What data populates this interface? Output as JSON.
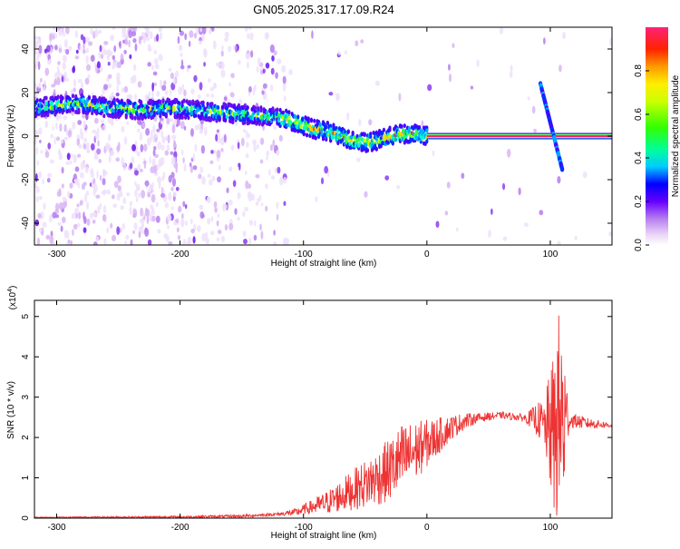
{
  "title": "GN05.2025.317.17.09.R24",
  "chart_data": [
    {
      "type": "heatmap",
      "xlabel": "Height of straight line (km)",
      "ylabel": "Frequency (Hz)",
      "xlim": [
        -318,
        150
      ],
      "ylim": [
        -50,
        50
      ],
      "xticks": [
        -300,
        -200,
        -100,
        0,
        100
      ],
      "yticks": [
        -40,
        -20,
        0,
        20,
        40
      ],
      "colorbar": {
        "label": "Normalized spectral amplitude",
        "range": [
          0,
          1
        ],
        "ticks": [
          0.0,
          0.2,
          0.4,
          0.6,
          0.8
        ]
      },
      "ridge": {
        "description_points_height_km": [
          -318,
          -300,
          -280,
          -260,
          -230,
          -210,
          -190,
          -170,
          -150,
          -130,
          -115,
          -100,
          -90,
          -80,
          -70,
          -60,
          -50,
          -40,
          -30,
          -20,
          -10,
          0,
          150
        ],
        "description_points_frequency_hz": [
          13,
          14,
          15,
          13,
          12,
          13,
          12,
          11,
          10,
          9,
          8,
          5,
          3,
          2,
          0,
          -2,
          -3,
          -2,
          0,
          1,
          1,
          0,
          0
        ]
      },
      "spike": {
        "height_km": [
          92,
          110
        ],
        "frequency_hz": [
          24,
          -16
        ]
      }
    },
    {
      "type": "line",
      "xlabel": "Height of straight line (km)",
      "ylabel": "SNR (10 * v/v)",
      "scale_label_base": "(x10",
      "scale_label_exp": "4",
      "scale_label_close": ")",
      "xlim": [
        -318,
        150
      ],
      "ylim": [
        0,
        5.4
      ],
      "xticks": [
        -300,
        -200,
        -100,
        0,
        100
      ],
      "yticks": [
        0,
        1,
        2,
        3,
        4,
        5
      ],
      "color": "#ee3333",
      "envelope_x": [
        -318,
        -200,
        -150,
        -120,
        -105,
        -100,
        -90,
        -80,
        -70,
        -60,
        -50,
        -40,
        -30,
        -20,
        -10,
        0,
        10,
        20,
        30,
        40,
        50,
        60,
        70,
        80,
        90,
        95,
        100,
        103,
        106,
        110,
        113,
        118,
        130,
        150
      ],
      "envelope_y": [
        0.02,
        0.03,
        0.05,
        0.1,
        0.15,
        0.22,
        0.3,
        0.4,
        0.55,
        0.7,
        0.85,
        1.0,
        1.2,
        1.45,
        1.65,
        1.85,
        2.05,
        2.25,
        2.4,
        2.48,
        2.52,
        2.55,
        2.52,
        2.48,
        2.45,
        2.3,
        2.2,
        2.0,
        2.5,
        2.3,
        2.4,
        2.42,
        2.35,
        2.3
      ],
      "noise_x": [
        -318,
        -120,
        -100,
        -80,
        -60,
        -40,
        -20,
        0,
        20,
        40,
        60,
        80,
        95,
        100,
        105,
        110,
        115,
        150
      ],
      "noise_amp": [
        0.01,
        0.04,
        0.12,
        0.3,
        0.5,
        0.7,
        0.9,
        0.6,
        0.3,
        0.12,
        0.08,
        0.1,
        0.6,
        1.5,
        2.6,
        2.8,
        0.2,
        0.06
      ]
    }
  ]
}
